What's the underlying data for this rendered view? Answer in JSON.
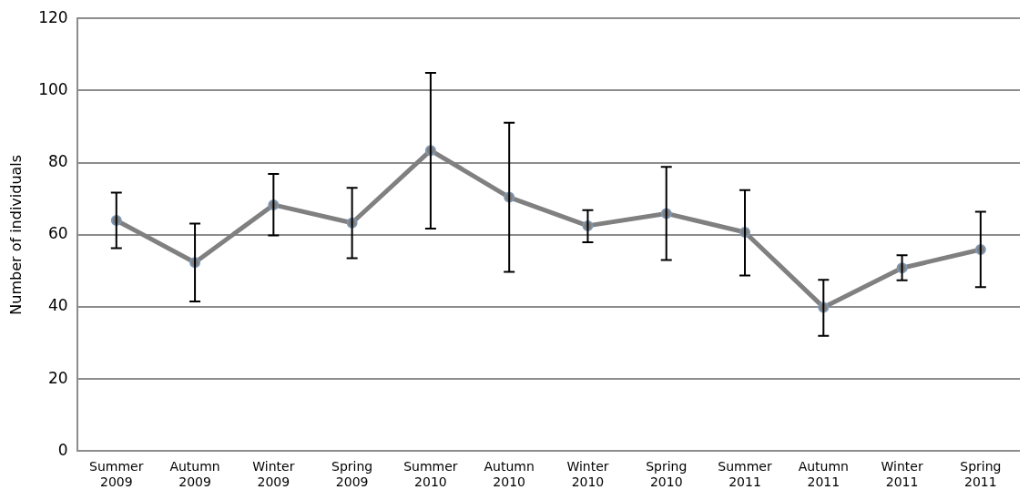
{
  "chart_data": {
    "type": "line",
    "ylabel": "Number of individuals",
    "categories": [
      "Summer 2009",
      "Autumn 2009",
      "Winter 2009",
      "Spring 2009",
      "Summer 2010",
      "Autumn 2010",
      "Winter 2010",
      "Spring 2010",
      "Summer 2011",
      "Autumn 2011",
      "Winter 2011",
      "Spring 2011"
    ],
    "series": [
      {
        "color": "#808080",
        "values": [
          64.0,
          52.3,
          68.3,
          63.3,
          83.4,
          70.4,
          62.5,
          65.9,
          60.7,
          39.9,
          50.8,
          55.9
        ],
        "errors": [
          [
            56.3,
            71.7
          ],
          [
            41.5,
            63.1
          ],
          [
            59.8,
            76.9
          ],
          [
            53.5,
            73.0
          ],
          [
            61.7,
            104.9
          ],
          [
            49.7,
            91.1
          ],
          [
            57.9,
            66.8
          ],
          [
            53.0,
            78.8
          ],
          [
            48.7,
            72.4
          ],
          [
            32.0,
            47.5
          ],
          [
            47.4,
            54.3
          ],
          [
            45.5,
            66.4
          ]
        ]
      }
    ],
    "ylim": [
      0,
      120
    ],
    "yticks": [
      0,
      20,
      40,
      60,
      80,
      100,
      120
    ],
    "grid": "y",
    "marker": "circle",
    "line_style": "solid",
    "legend": false
  }
}
